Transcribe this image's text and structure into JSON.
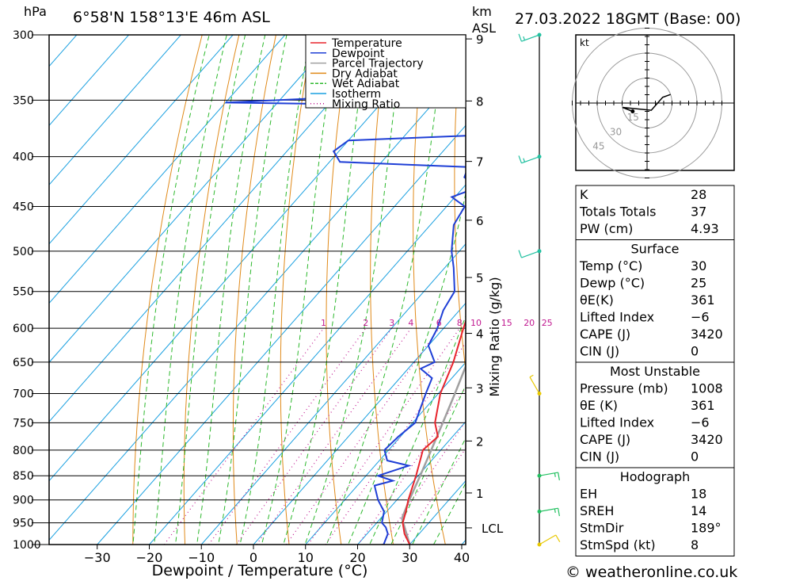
{
  "header": {
    "location": "6°58'N  158°13'E  46m  ASL",
    "datetime": "27.03.2022  18GMT  (Base: 00)",
    "pressure_unit": "hPa",
    "height_unit_1": "km",
    "height_unit_2": "ASL"
  },
  "footer": {
    "copyright": "© weatheronline.co.uk"
  },
  "chart_data": {
    "type": "skew-t log-p sounding",
    "xlabel": "Dewpoint / Temperature (°C)",
    "ylabel_right": "Mixing Ratio (g/kg)",
    "x_ticks": [
      -30,
      -20,
      -10,
      0,
      10,
      20,
      30,
      40
    ],
    "xlim": [
      -40,
      40
    ],
    "pressure_levels": [
      300,
      350,
      400,
      450,
      500,
      550,
      600,
      650,
      700,
      750,
      800,
      850,
      900,
      950,
      1000
    ],
    "ylim_hpa": [
      1000,
      300
    ],
    "height_ticks_km": [
      1,
      2,
      3,
      4,
      5,
      6,
      7,
      8,
      9
    ],
    "lcl_label": "LCL",
    "lcl_hpa": 940,
    "mixing_ratio_labels": [
      "1",
      "2",
      "3",
      "4",
      "6",
      "8",
      "10",
      "15",
      "20",
      "25"
    ],
    "mixing_ratio_values": [
      1,
      2,
      3,
      4,
      6,
      8,
      10,
      15,
      20,
      25
    ],
    "legend": [
      {
        "label": "Temperature",
        "color": "#e8242c",
        "style": "solid"
      },
      {
        "label": "Dewpoint",
        "color": "#1f3fd6",
        "style": "solid"
      },
      {
        "label": "Parcel Trajectory",
        "color": "#a0a0a0",
        "style": "solid"
      },
      {
        "label": "Dry Adiabat",
        "color": "#e08a1a",
        "style": "solid"
      },
      {
        "label": "Wet Adiabat",
        "color": "#2cb82c",
        "style": "dashed"
      },
      {
        "label": "Isotherm",
        "color": "#1aa0e0",
        "style": "solid"
      },
      {
        "label": "Mixing Ratio",
        "color": "#c01890",
        "style": "dotted"
      }
    ],
    "temperature": [
      [
        1000,
        30.0
      ],
      [
        975,
        27.2
      ],
      [
        950,
        25.0
      ],
      [
        925,
        23.7
      ],
      [
        900,
        22.2
      ],
      [
        850,
        19.6
      ],
      [
        800,
        16.6
      ],
      [
        775,
        17.2
      ],
      [
        750,
        14.3
      ],
      [
        700,
        10.4
      ],
      [
        650,
        7.6
      ],
      [
        600,
        3.8
      ],
      [
        550,
        0.0
      ],
      [
        500,
        -5.0
      ],
      [
        450,
        -11.4
      ],
      [
        425,
        -14.8
      ],
      [
        400,
        -17.6
      ],
      [
        375,
        -23.5
      ]
    ],
    "dewpoint": [
      [
        1000,
        25.0
      ],
      [
        975,
        24.0
      ],
      [
        960,
        22.5
      ],
      [
        950,
        21.0
      ],
      [
        925,
        19.5
      ],
      [
        900,
        16.4
      ],
      [
        870,
        13.3
      ],
      [
        860,
        16.0
      ],
      [
        850,
        12.3
      ],
      [
        830,
        16.5
      ],
      [
        820,
        11.5
      ],
      [
        800,
        9.2
      ],
      [
        775,
        9.6
      ],
      [
        750,
        10.5
      ],
      [
        700,
        7.6
      ],
      [
        675,
        6.2
      ],
      [
        660,
        2.4
      ],
      [
        650,
        4.0
      ],
      [
        625,
        0.0
      ],
      [
        600,
        -1.2
      ],
      [
        575,
        -3.1
      ],
      [
        550,
        -4.1
      ],
      [
        520,
        -8.3
      ],
      [
        500,
        -11.5
      ],
      [
        470,
        -15.5
      ],
      [
        450,
        -16.5
      ],
      [
        440,
        -20.6
      ],
      [
        430,
        -17.2
      ],
      [
        420,
        -21.5
      ],
      [
        410,
        -22.5
      ],
      [
        405,
        -48.0
      ],
      [
        395,
        -51.0
      ],
      [
        385,
        -50.0
      ],
      [
        380,
        -24.5
      ],
      [
        365,
        -29.0
      ],
      [
        355,
        -30.5
      ],
      [
        352,
        -80.0
      ],
      [
        348,
        -61.0
      ],
      [
        345,
        -60.0
      ],
      [
        340,
        -50.0
      ],
      [
        330,
        -55.0
      ],
      [
        320,
        -53.5
      ],
      [
        305,
        -53.8
      ],
      [
        300,
        -55.5
      ]
    ],
    "parcel": [
      [
        1000,
        30.0
      ],
      [
        940,
        24.1
      ],
      [
        900,
        22.4
      ],
      [
        850,
        20.4
      ],
      [
        800,
        18.2
      ],
      [
        750,
        15.8
      ],
      [
        700,
        13.2
      ],
      [
        650,
        10.3
      ],
      [
        600,
        7.0
      ],
      [
        550,
        3.3
      ],
      [
        500,
        -0.9
      ],
      [
        450,
        -5.8
      ],
      [
        400,
        -11.6
      ],
      [
        370,
        -15.7
      ]
    ],
    "wind_profile": [
      {
        "hpa": 300,
        "dir": 250,
        "kt": 15
      },
      {
        "hpa": 400,
        "dir": 250,
        "kt": 15
      },
      {
        "hpa": 500,
        "dir": 250,
        "kt": 10
      },
      {
        "hpa": 700,
        "dir": 330,
        "kt": 5
      },
      {
        "hpa": 850,
        "dir": 80,
        "kt": 15
      },
      {
        "hpa": 925,
        "dir": 80,
        "kt": 15
      },
      {
        "hpa": 1000,
        "dir": 60,
        "kt": 10
      }
    ]
  },
  "hodograph": {
    "unit_label": "kt",
    "ring_labels": [
      "15",
      "30",
      "45"
    ]
  },
  "indices": {
    "rows": [
      {
        "label": "K",
        "value": "28"
      },
      {
        "label": "Totals Totals",
        "value": "37"
      },
      {
        "label": "PW (cm)",
        "value": "4.93"
      }
    ]
  },
  "surface": {
    "title": "Surface",
    "rows": [
      {
        "label": "Temp (°C)",
        "value": "30"
      },
      {
        "label": "Dewp (°C)",
        "value": "25"
      },
      {
        "label": "θE(K)",
        "value": "361"
      },
      {
        "label": "Lifted Index",
        "value": "−6"
      },
      {
        "label": "CAPE (J)",
        "value": "3420"
      },
      {
        "label": "CIN (J)",
        "value": "0"
      }
    ]
  },
  "most_unstable": {
    "title": "Most Unstable",
    "rows": [
      {
        "label": "Pressure (mb)",
        "value": "1008"
      },
      {
        "label": "θE (K)",
        "value": "361"
      },
      {
        "label": "Lifted Index",
        "value": "−6"
      },
      {
        "label": "CAPE (J)",
        "value": "3420"
      },
      {
        "label": "CIN (J)",
        "value": "0"
      }
    ]
  },
  "hodo_table": {
    "title": "Hodograph",
    "rows": [
      {
        "label": "EH",
        "value": "18"
      },
      {
        "label": "SREH",
        "value": "14"
      },
      {
        "label": "StmDir",
        "value": "189°"
      },
      {
        "label": "StmSpd (kt)",
        "value": "8"
      }
    ]
  }
}
